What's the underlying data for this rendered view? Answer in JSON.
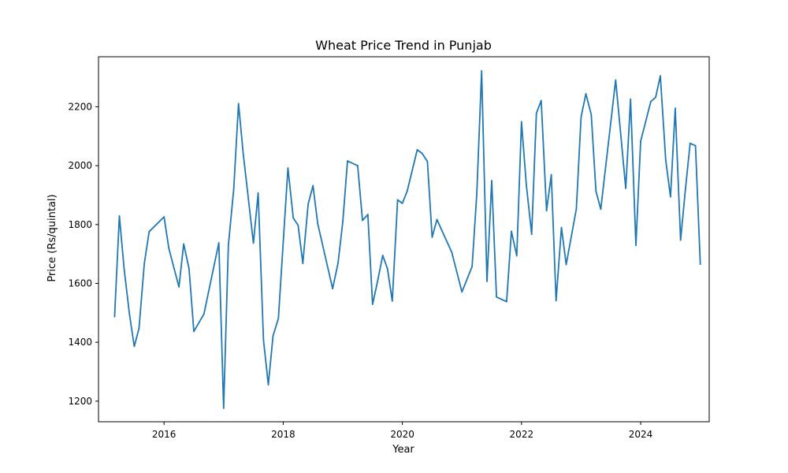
{
  "chart_data": {
    "type": "line",
    "title": "Wheat Price Trend in Punjab",
    "xlabel": "Year",
    "ylabel": "Price (Rs/quintal)",
    "xlim": [
      2014.9,
      2025.15
    ],
    "ylim": [
      1130,
      2370
    ],
    "xticks": [
      2016,
      2018,
      2020,
      2022,
      2024
    ],
    "yticks": [
      1200,
      1400,
      1600,
      1800,
      2000,
      2200
    ],
    "grid": false,
    "color": "#1f77b4",
    "series": [
      {
        "x": [
          2015.17,
          2015.25,
          2015.33,
          2015.42,
          2015.5,
          2015.58,
          2015.67,
          2015.75,
          2016.0,
          2016.08,
          2016.17,
          2016.25,
          2016.33,
          2016.42,
          2016.5,
          2016.67,
          2016.92,
          2017.0,
          2017.08,
          2017.17,
          2017.25,
          2017.33,
          2017.5,
          2017.58,
          2017.67,
          2017.75,
          2017.83,
          2017.92,
          2018.08,
          2018.17,
          2018.25,
          2018.33,
          2018.42,
          2018.5,
          2018.58,
          2018.83,
          2018.92,
          2019.0,
          2019.08,
          2019.25,
          2019.33,
          2019.42,
          2019.5,
          2019.58,
          2019.67,
          2019.75,
          2019.83,
          2019.92,
          2020.0,
          2020.08,
          2020.25,
          2020.33,
          2020.42,
          2020.5,
          2020.58,
          2020.83,
          2021.0,
          2021.17,
          2021.25,
          2021.33,
          2021.42,
          2021.5,
          2021.58,
          2021.75,
          2021.83,
          2021.92,
          2022.0,
          2022.08,
          2022.17,
          2022.25,
          2022.33,
          2022.42,
          2022.5,
          2022.58,
          2022.67,
          2022.75,
          2022.92,
          2023.0,
          2023.08,
          2023.17,
          2023.25,
          2023.33,
          2023.58,
          2023.75,
          2023.83,
          2023.92,
          2024.0,
          2024.17,
          2024.25,
          2024.33,
          2024.42,
          2024.5,
          2024.58,
          2024.67,
          2024.75,
          2024.83,
          2024.92,
          2025.0
        ],
        "y": [
          1487,
          1829,
          1650,
          1495,
          1386,
          1447,
          1669,
          1776,
          1826,
          1720,
          1650,
          1588,
          1734,
          1650,
          1437,
          1496,
          1738,
          1176,
          1729,
          1920,
          2211,
          2040,
          1737,
          1907,
          1407,
          1256,
          1422,
          1481,
          1992,
          1822,
          1798,
          1668,
          1870,
          1932,
          1803,
          1582,
          1669,
          1809,
          2016,
          2000,
          1814,
          1834,
          1529,
          1604,
          1695,
          1650,
          1540,
          1884,
          1872,
          1913,
          2054,
          2042,
          2014,
          1757,
          1817,
          1705,
          1571,
          1657,
          1906,
          2322,
          1607,
          1949,
          1554,
          1538,
          1777,
          1694,
          2149,
          1936,
          1767,
          2178,
          2221,
          1847,
          1969,
          1541,
          1790,
          1664,
          1853,
          2165,
          2244,
          2174,
          1913,
          1852,
          2291,
          1923,
          2226,
          1729,
          2083,
          2218,
          2232,
          2305,
          2020,
          1894,
          2195,
          1747,
          1919,
          2076,
          2068,
          1665
        ]
      }
    ]
  }
}
